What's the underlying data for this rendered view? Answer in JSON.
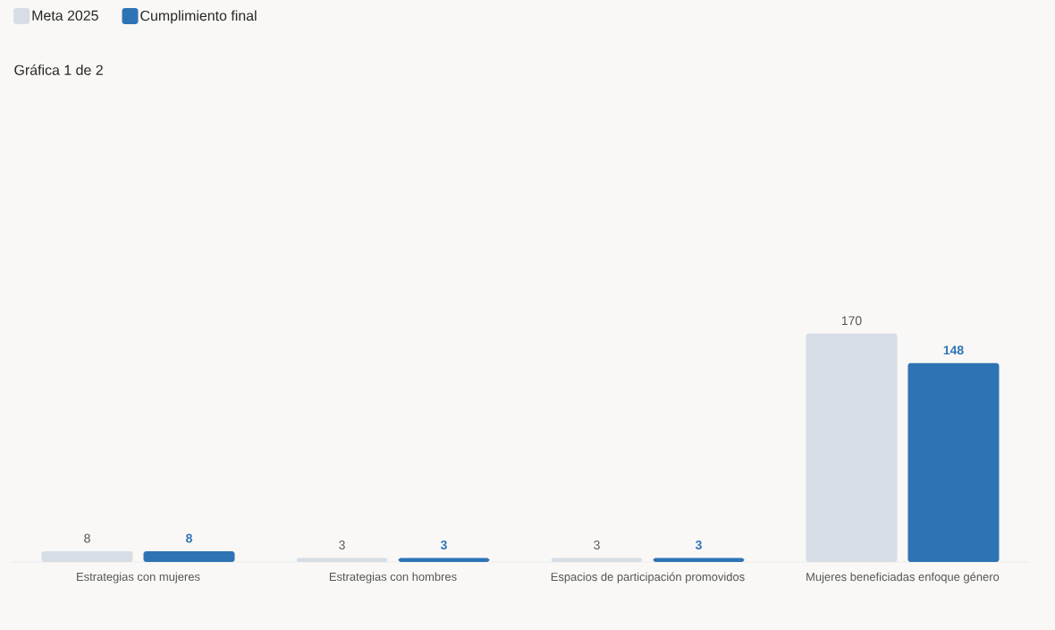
{
  "chart_data": {
    "type": "bar",
    "title": "Gráfica 1 de 2",
    "legend": "top left",
    "data_labels": true,
    "categories": [
      "Estrategias con mujeres",
      "Estrategias con hombres",
      "Espacios de participación promovidos",
      "Mujeres beneficiadas enfoque género"
    ],
    "series": [
      {
        "name": "Meta 2025",
        "color": "#d6dde5",
        "values": [
          8,
          3,
          3,
          170
        ]
      },
      {
        "name": "Cumplimiento final",
        "color": "#2e74b5",
        "values": [
          8,
          3,
          3,
          148
        ]
      }
    ]
  }
}
